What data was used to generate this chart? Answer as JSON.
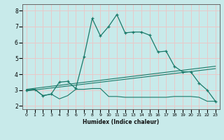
{
  "xlabel": "Humidex (Indice chaleur)",
  "bg_color": "#c8eaea",
  "grid_color": "#e8c8c8",
  "line_color": "#1a7a6a",
  "x_ticks": [
    0,
    1,
    2,
    3,
    4,
    5,
    6,
    7,
    8,
    9,
    10,
    11,
    12,
    13,
    14,
    15,
    16,
    17,
    18,
    19,
    20,
    21,
    22,
    23
  ],
  "y_ticks": [
    2,
    3,
    4,
    5,
    6,
    7,
    8
  ],
  "xlim": [
    -0.5,
    23.5
  ],
  "ylim": [
    1.8,
    8.4
  ],
  "series1_x": [
    0,
    1,
    2,
    3,
    4,
    5,
    6,
    7,
    8,
    9,
    10,
    11,
    12,
    13,
    14,
    15,
    16,
    17,
    18,
    19,
    20,
    21,
    22,
    23
  ],
  "series1_y": [
    3.0,
    3.05,
    2.65,
    2.75,
    3.5,
    3.55,
    3.1,
    5.1,
    7.5,
    6.4,
    7.0,
    7.75,
    6.6,
    6.65,
    6.65,
    6.45,
    5.4,
    5.45,
    4.5,
    4.15,
    4.15,
    3.45,
    3.0,
    2.3
  ],
  "series2_x": [
    0,
    1,
    2,
    3,
    4,
    5,
    6,
    7,
    8,
    9,
    10,
    11,
    12,
    13,
    14,
    15,
    16,
    17,
    18,
    19,
    20,
    21,
    22,
    23
  ],
  "series2_y": [
    3.0,
    3.05,
    2.65,
    2.75,
    2.45,
    2.65,
    3.05,
    3.05,
    3.1,
    3.1,
    2.6,
    2.6,
    2.55,
    2.55,
    2.55,
    2.55,
    2.55,
    2.55,
    2.6,
    2.6,
    2.6,
    2.55,
    2.3,
    2.3
  ],
  "series3_x": [
    0,
    23
  ],
  "series3_y": [
    2.95,
    4.35
  ],
  "series4_x": [
    0,
    23
  ],
  "series4_y": [
    3.05,
    4.5
  ]
}
